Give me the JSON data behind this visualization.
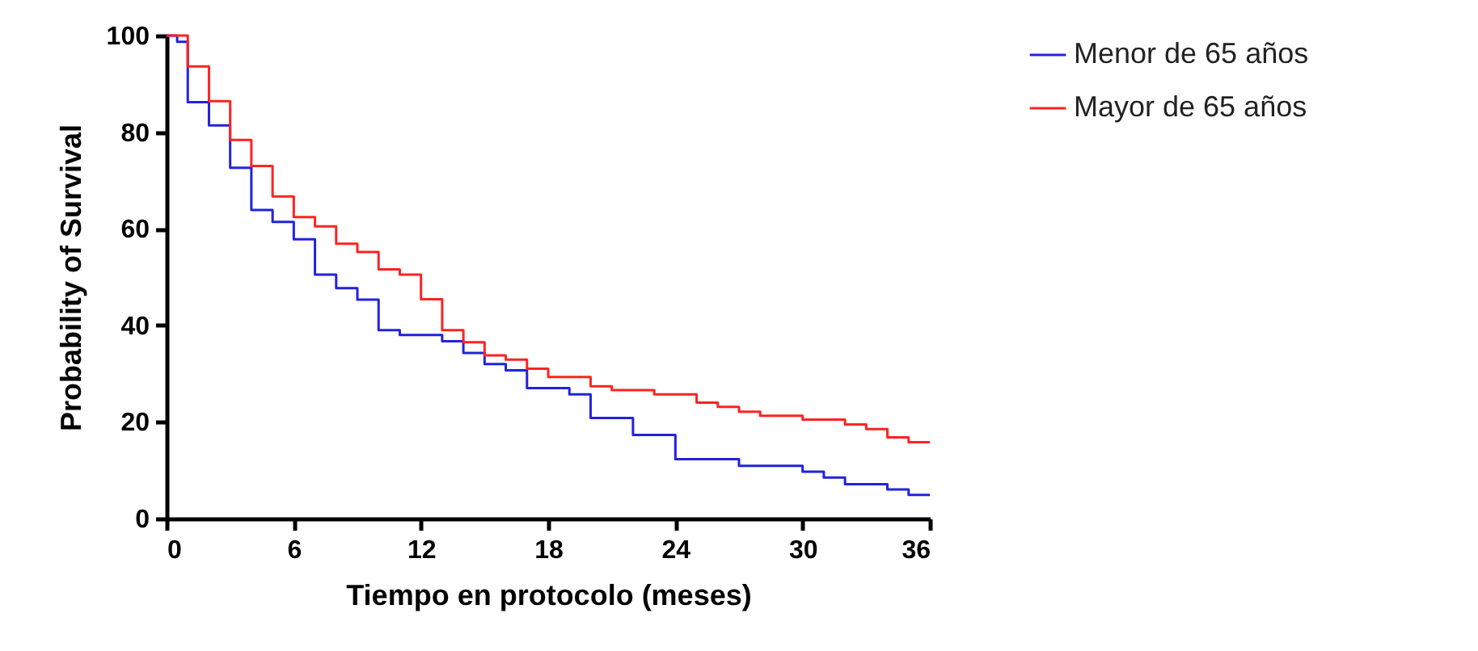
{
  "chart_data": {
    "type": "step",
    "xlabel": "Tiempo en protocolo (meses)",
    "ylabel": "Probability of Survival",
    "xlim": [
      0,
      36
    ],
    "xticks": [
      0,
      6,
      12,
      18,
      24,
      30,
      36
    ],
    "ylim": [
      0,
      100
    ],
    "yticks": [
      0,
      20,
      40,
      60,
      80,
      100
    ],
    "grid": false,
    "legend": "top right",
    "series": [
      {
        "name": "Menor de 65 años",
        "color": "#2222dd",
        "x": [
          0,
          0.5,
          1,
          2,
          3,
          4,
          5,
          6,
          7,
          8,
          9,
          10,
          11,
          13,
          14,
          15,
          16,
          17,
          19,
          20,
          22,
          24,
          27,
          30,
          31,
          32,
          34,
          35,
          36
        ],
        "values": [
          100,
          98.7,
          86.2,
          81.4,
          72.6,
          63.9,
          61.4,
          57.8,
          50.5,
          47.7,
          45.3,
          39,
          38,
          36.7,
          34.3,
          32,
          30.7,
          27,
          25.7,
          20.8,
          17.3,
          12.3,
          10.9,
          9.7,
          8.5,
          7.1,
          6,
          4.9,
          4.9
        ]
      },
      {
        "name": "Mayor de 65 años",
        "color": "#ff2222",
        "x": [
          0,
          1,
          2,
          3,
          4,
          5,
          6,
          7,
          8,
          9,
          10,
          11,
          12,
          13,
          14,
          15,
          16,
          17,
          18,
          20,
          21,
          23,
          25,
          26,
          27,
          28,
          30,
          32,
          33,
          34,
          35,
          36
        ],
        "values": [
          100,
          93.6,
          86.4,
          78.4,
          73,
          66.7,
          62.4,
          60.5,
          56.9,
          55.2,
          51.6,
          50.5,
          45.4,
          39,
          36.5,
          33.8,
          32.9,
          31,
          29.3,
          27.4,
          26.6,
          25.7,
          24,
          23.1,
          22.1,
          21.3,
          20.5,
          19.5,
          18.5,
          16.8,
          15.8,
          15.8
        ]
      }
    ]
  }
}
